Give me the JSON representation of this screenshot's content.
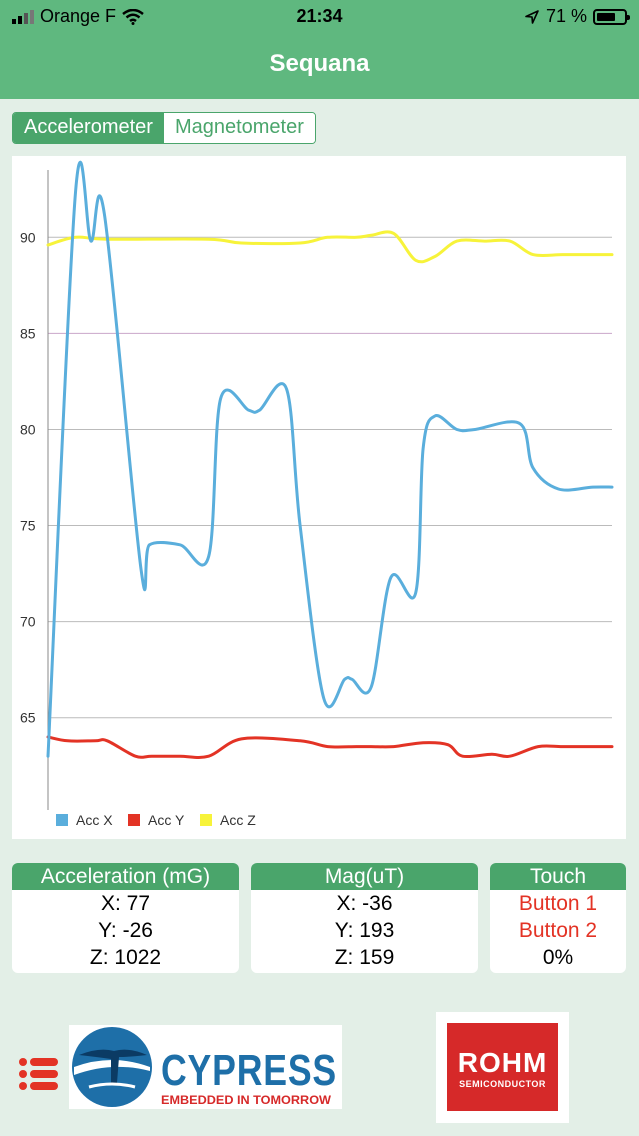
{
  "status_bar": {
    "carrier": "Orange F",
    "time": "21:34",
    "battery_text": "71 %",
    "battery_level": 0.71
  },
  "nav": {
    "title": "Sequana"
  },
  "segment": {
    "tabs": [
      "Accelerometer",
      "Magnetometer"
    ],
    "selected": 0
  },
  "chart_data": {
    "type": "line",
    "yticks": [
      65,
      70,
      75,
      80,
      85,
      90
    ],
    "ylim": [
      60.2,
      93.5
    ],
    "xlim": [
      0,
      100
    ],
    "grid": true,
    "legend_position": "bottom-left",
    "series": [
      {
        "name": "Acc X",
        "color": "#5aaedc",
        "x": [
          0,
          4.9,
          7.6,
          10,
          16.5,
          18,
          23.4,
          28.5,
          30.6,
          35.6,
          37.5,
          42.3,
          44.7,
          48.9,
          52.6,
          53.9,
          57.3,
          60.8,
          65.2,
          66.5,
          68.6,
          72.5,
          75.7,
          83.7,
          86,
          90.5,
          96.6,
          100
        ],
        "y": [
          63,
          92.4,
          89.8,
          91.2,
          72.7,
          74,
          74,
          73.4,
          81.6,
          81,
          81,
          82.1,
          75,
          66,
          67,
          67,
          66.6,
          72.3,
          71.5,
          79,
          80.7,
          80,
          80,
          80.3,
          78,
          76.9,
          77,
          77
        ]
      },
      {
        "name": "Acc Y",
        "color": "#e33325",
        "x": [
          0,
          3.5,
          8.4,
          10.5,
          15.5,
          18.4,
          23.4,
          28.5,
          34.3,
          44.7,
          49.6,
          54.7,
          57.3,
          61.3,
          66.5,
          70.9,
          73.5,
          78.7,
          81.9,
          86.9,
          91.2,
          96.6,
          100
        ],
        "y": [
          64,
          63.8,
          63.8,
          63.8,
          63,
          63,
          63,
          63,
          63.9,
          63.8,
          63.5,
          63.5,
          63.5,
          63.5,
          63.7,
          63.6,
          63,
          63.1,
          63,
          63.5,
          63.5,
          63.5,
          63.5
        ],
        "labels": []
      },
      {
        "name": "Acc Z",
        "color": "#f7f33a",
        "x": [
          0,
          4.9,
          10.5,
          28.5,
          34.3,
          44.7,
          49.6,
          54.7,
          57.3,
          61.3,
          65.2,
          68.6,
          72.5,
          77.4,
          81.9,
          86,
          91.2,
          96.6,
          100
        ],
        "y": [
          89.6,
          90,
          89.9,
          89.9,
          89.7,
          89.7,
          90,
          90,
          90.1,
          90.2,
          88.8,
          89,
          89.8,
          89.8,
          89.8,
          89.1,
          89.1,
          89.1,
          89.1
        ]
      }
    ]
  },
  "cards": {
    "acceleration": {
      "title": "Acceleration (mG)",
      "x": "X: 77",
      "y": "Y: -26",
      "z": "Z: 1022"
    },
    "mag": {
      "title": "Mag(uT)",
      "x": "X: -36",
      "y": "Y: 193",
      "z": "Z: 159"
    },
    "touch": {
      "title": "Touch",
      "button1": "Button 1",
      "button2": "Button 2",
      "value": "0%"
    }
  },
  "logos": {
    "cypress": {
      "name": "CYPRESS",
      "tagline": "EMBEDDED IN TOMORROW"
    },
    "rohm": {
      "name": "ROHM",
      "sub": "SEMICONDUCTOR"
    }
  },
  "colors": {
    "accent": "#4aa56b",
    "nav": "#5fb87f",
    "background": "#e3efe7",
    "touch_active": "#e33325"
  }
}
